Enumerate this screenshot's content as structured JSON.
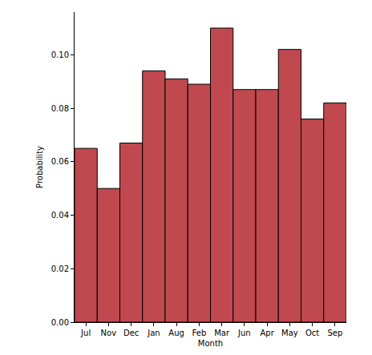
{
  "chart_data": {
    "type": "bar",
    "x_label": "Month",
    "y_label": "Probability",
    "categories": [
      "Jul",
      "Nov",
      "Dec",
      "Jan",
      "Aug",
      "Feb",
      "Mar",
      "Jun",
      "Apr",
      "May",
      "Oct",
      "Sep"
    ],
    "values": [
      0.065,
      0.05,
      0.067,
      0.094,
      0.091,
      0.089,
      0.11,
      0.087,
      0.087,
      0.102,
      0.076,
      0.082
    ],
    "color": "#c0484f",
    "ylim": [
      0,
      0.116
    ],
    "yticks": [
      {
        "value": 0,
        "label": "0.00"
      },
      {
        "value": 0.02,
        "label": "0.02"
      },
      {
        "value": 0.04,
        "label": "0.04"
      },
      {
        "value": 0.06,
        "label": "0.06"
      },
      {
        "value": 0.08,
        "label": "0.08"
      },
      {
        "value": 0.1,
        "label": "0.10"
      }
    ],
    "grid": false
  }
}
